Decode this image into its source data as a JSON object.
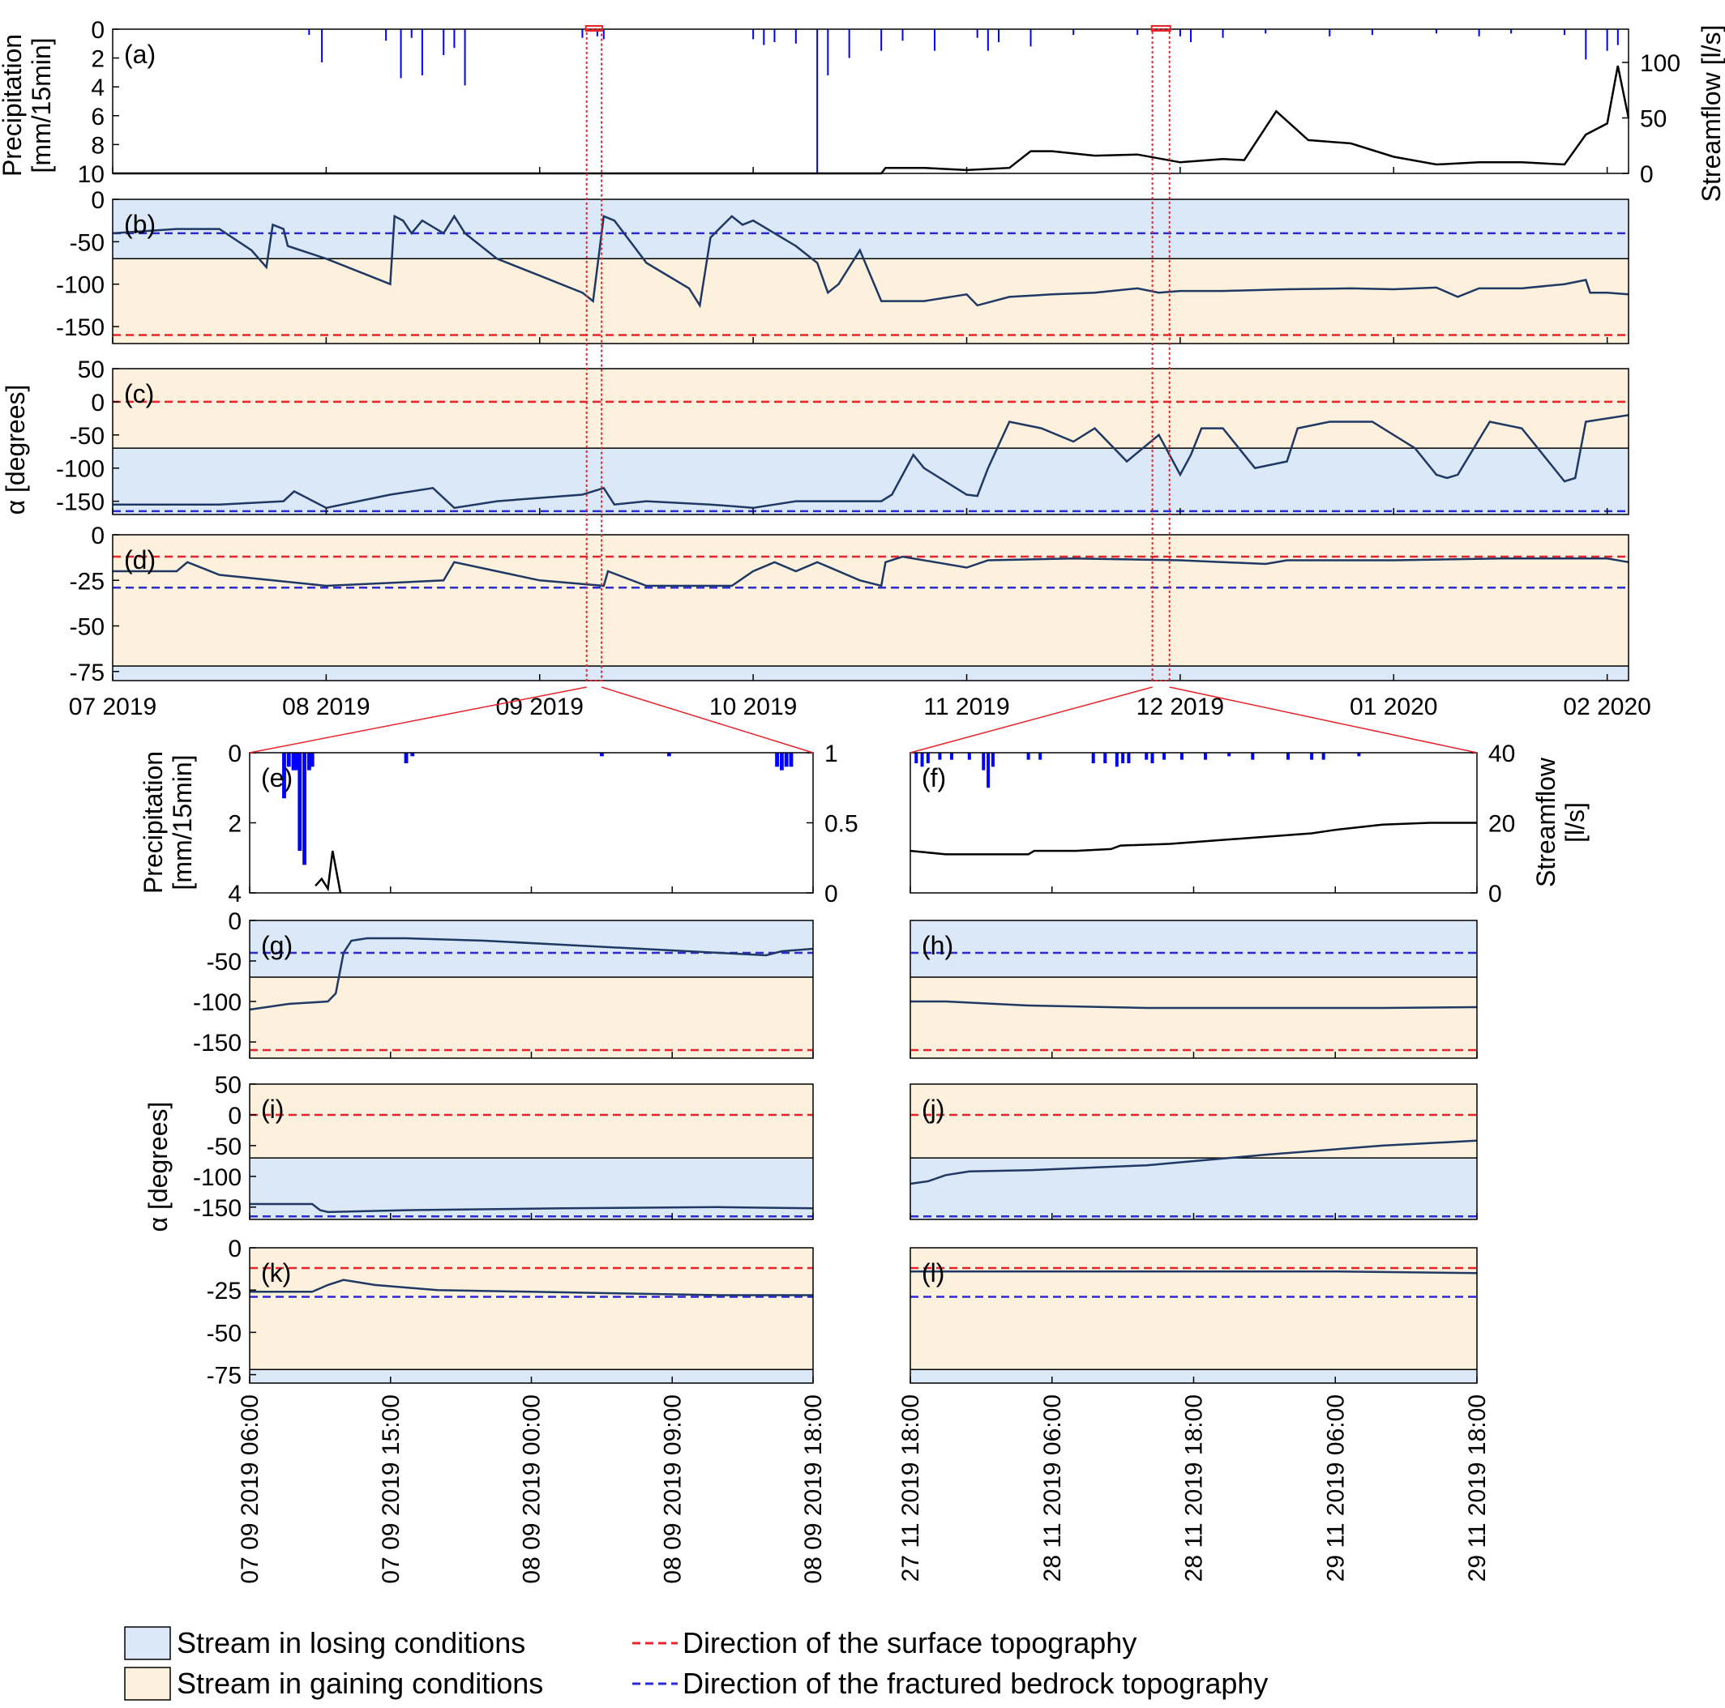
{
  "colors": {
    "losing": "#dae8f7",
    "gaining": "#fdf0dc",
    "precip": "#0000ff",
    "streamflow": "#000000",
    "alpha_line": "#1f3864",
    "surface_dir": "#e8242a",
    "bedrock_dir": "#2a2ad6",
    "zoom_box": "#e8242a"
  },
  "labels": {
    "precip_ylabel_top": [
      "Precipitation",
      "[mm/15min]"
    ],
    "streamflow_ylabel_top": "Streamflow [l/s]",
    "alpha_ylabel": "α [degrees]",
    "precip_ylabel_bottom": [
      "Precipitation",
      "[mm/15min]"
    ],
    "streamflow_ylabel_bottom": [
      "Streamflow",
      "[l/s]"
    ],
    "alpha_ylabel_bottom": "α [degrees]"
  },
  "legend": {
    "losing": "Stream in losing conditions",
    "gaining": "Stream in gaining conditions",
    "surface": "Direction of the surface topography",
    "bedrock": "Direction of the fractured bedrock topography"
  },
  "chart_data": [
    {
      "panel": "(a)",
      "type": "bar+line",
      "x_tick_labels": [
        "07 2019",
        "08 2019",
        "09 2019",
        "10 2019",
        "11 2019",
        "12 2019",
        "01 2020",
        "02 2020"
      ],
      "x_month_index": [
        0,
        1,
        2,
        3,
        4,
        5,
        6,
        7
      ],
      "xlim": [
        0,
        7.1
      ],
      "y_left": {
        "label": "Precipitation [mm/15min]",
        "lim": [
          10,
          0
        ],
        "ticks": [
          "0",
          "2",
          "4",
          "6",
          "8",
          "10"
        ],
        "tick_values": [
          0,
          2,
          4,
          6,
          8,
          10
        ]
      },
      "y_right": {
        "label": "Streamflow [l/s]",
        "lim": [
          0,
          130
        ],
        "ticks": [
          "0",
          "50",
          "100"
        ],
        "tick_values": [
          0,
          50,
          100
        ]
      },
      "precipitation": {
        "x": [
          0.92,
          0.98,
          1.28,
          1.35,
          1.4,
          1.45,
          1.55,
          1.6,
          1.65,
          2.2,
          2.27,
          2.3,
          3.0,
          3.05,
          3.1,
          3.2,
          3.3,
          3.35,
          3.45,
          3.6,
          3.7,
          3.85,
          4.05,
          4.1,
          4.15,
          4.3,
          4.5,
          4.8,
          5.0,
          5.05,
          5.2,
          5.4,
          5.7,
          5.9,
          6.2,
          6.4,
          6.55,
          6.8,
          6.9,
          7.0,
          7.05
        ],
        "values": [
          0.4,
          2.3,
          0.8,
          3.4,
          0.6,
          3.2,
          1.8,
          1.3,
          3.9,
          0.6,
          0.5,
          0.7,
          0.7,
          1.1,
          0.9,
          1.0,
          10.0,
          3.2,
          2.0,
          1.5,
          0.8,
          1.5,
          0.6,
          1.5,
          0.9,
          1.2,
          0.4,
          0.4,
          0.5,
          0.9,
          0.6,
          0.3,
          0.5,
          0.4,
          0.3,
          0.5,
          0.3,
          0.4,
          2.1,
          1.5,
          1.1
        ]
      },
      "streamflow": {
        "x": [
          0,
          1,
          2,
          3,
          3.6,
          3.62,
          3.8,
          4.0,
          4.2,
          4.3,
          4.4,
          4.6,
          4.8,
          5.0,
          5.2,
          5.3,
          5.45,
          5.6,
          5.8,
          6.0,
          6.2,
          6.4,
          6.6,
          6.8,
          6.9,
          7.0,
          7.05,
          7.1
        ],
        "values": [
          0,
          0,
          0,
          0,
          0,
          5,
          5,
          3,
          5,
          20,
          20,
          16,
          17,
          10,
          13,
          12,
          56,
          30,
          27,
          15,
          8,
          10,
          10,
          8,
          35,
          45,
          97,
          50
        ]
      }
    },
    {
      "panel": "(b)",
      "type": "line",
      "ylim": [
        -170,
        0
      ],
      "ticks": [
        "0",
        "-50",
        "-100",
        "-150"
      ],
      "tick_values": [
        0,
        -50,
        -100,
        -150
      ],
      "losing_band": [
        -70,
        0
      ],
      "gaining_band": [
        -170,
        -70
      ],
      "surface_dir": -160,
      "bedrock_dir": -40,
      "x": [
        0,
        0.3,
        0.5,
        0.65,
        0.72,
        0.75,
        0.8,
        0.82,
        1.0,
        1.2,
        1.3,
        1.32,
        1.36,
        1.4,
        1.45,
        1.55,
        1.6,
        1.65,
        1.8,
        2.0,
        2.2,
        2.25,
        2.3,
        2.35,
        2.5,
        2.7,
        2.75,
        2.8,
        2.9,
        2.95,
        3.0,
        3.1,
        3.2,
        3.3,
        3.35,
        3.4,
        3.5,
        3.6,
        3.8,
        4.0,
        4.05,
        4.2,
        4.4,
        4.6,
        4.8,
        4.9,
        5.0,
        5.2,
        5.5,
        5.8,
        6.0,
        6.2,
        6.3,
        6.4,
        6.6,
        6.8,
        6.9,
        6.92,
        7.0,
        7.1
      ],
      "values": [
        -40,
        -35,
        -35,
        -60,
        -80,
        -30,
        -35,
        -55,
        -70,
        -90,
        -100,
        -20,
        -25,
        -40,
        -25,
        -40,
        -20,
        -40,
        -70,
        -90,
        -110,
        -120,
        -20,
        -25,
        -75,
        -105,
        -125,
        -45,
        -20,
        -30,
        -25,
        -40,
        -55,
        -75,
        -110,
        -100,
        -60,
        -120,
        -120,
        -112,
        -125,
        -115,
        -112,
        -110,
        -105,
        -110,
        -108,
        -108,
        -106,
        -105,
        -106,
        -104,
        -115,
        -105,
        -105,
        -100,
        -95,
        -110,
        -110,
        -112
      ]
    },
    {
      "panel": "(c)",
      "type": "line",
      "ylim": [
        -170,
        50
      ],
      "ticks": [
        "50",
        "0",
        "-50",
        "-100",
        "-150"
      ],
      "tick_values": [
        50,
        0,
        -50,
        -100,
        -150
      ],
      "losing_band": [
        -170,
        -70
      ],
      "gaining_band": [
        -70,
        50
      ],
      "surface_dir": 0,
      "bedrock_dir": -165,
      "x": [
        0,
        0.5,
        0.8,
        0.85,
        1.0,
        1.3,
        1.5,
        1.6,
        1.8,
        2.0,
        2.2,
        2.3,
        2.35,
        2.5,
        2.8,
        3.0,
        3.2,
        3.4,
        3.6,
        3.65,
        3.75,
        3.8,
        4.0,
        4.05,
        4.1,
        4.2,
        4.35,
        4.5,
        4.6,
        4.75,
        4.9,
        5.0,
        5.05,
        5.1,
        5.2,
        5.35,
        5.5,
        5.55,
        5.7,
        5.9,
        6.1,
        6.2,
        6.25,
        6.3,
        6.45,
        6.6,
        6.8,
        6.85,
        6.9,
        7.0,
        7.1
      ],
      "values": [
        -155,
        -155,
        -150,
        -135,
        -160,
        -140,
        -130,
        -160,
        -150,
        -145,
        -140,
        -130,
        -155,
        -150,
        -155,
        -160,
        -150,
        -150,
        -150,
        -140,
        -80,
        -100,
        -140,
        -142,
        -100,
        -30,
        -40,
        -60,
        -40,
        -90,
        -50,
        -110,
        -80,
        -40,
        -40,
        -100,
        -90,
        -40,
        -30,
        -30,
        -70,
        -110,
        -115,
        -110,
        -30,
        -40,
        -120,
        -115,
        -30,
        -25,
        -20
      ]
    },
    {
      "panel": "(d)",
      "type": "line",
      "ylim": [
        -80,
        0
      ],
      "ticks": [
        "0",
        "-25",
        "-50",
        "-75"
      ],
      "tick_values": [
        0,
        -25,
        -50,
        -75
      ],
      "losing_band": [
        -80,
        -72
      ],
      "gaining_band": [
        -72,
        0
      ],
      "surface_dir": -12,
      "bedrock_dir": -29,
      "x": [
        0,
        0.3,
        0.35,
        0.5,
        1.0,
        1.55,
        1.6,
        2.0,
        2.3,
        2.32,
        2.5,
        2.9,
        3.0,
        3.1,
        3.2,
        3.3,
        3.5,
        3.6,
        3.62,
        3.7,
        4.0,
        4.1,
        4.5,
        5.0,
        5.4,
        5.5,
        6.0,
        6.5,
        7.0,
        7.1
      ],
      "values": [
        -20,
        -20,
        -15,
        -22,
        -28,
        -25,
        -15,
        -25,
        -28,
        -20,
        -28,
        -28,
        -20,
        -15,
        -20,
        -15,
        -25,
        -28,
        -15,
        -12,
        -18,
        -14,
        -13,
        -14,
        -16,
        -14,
        -14,
        -13,
        -13,
        -15
      ]
    },
    {
      "panel": "(e)",
      "type": "bar+line",
      "x_tick_labels": [
        "07 09 2019 06:00",
        "07 09 2019 15:00",
        "08 09 2019 00:00",
        "08 09 2019 09:00",
        "08 09 2019 18:00"
      ],
      "x_hours_since_07_09_2019_06_00": [
        0,
        9,
        18,
        27,
        36
      ],
      "xlim": [
        0,
        36
      ],
      "y_left": {
        "label": "Precipitation [mm/15min]",
        "lim": [
          4,
          0
        ],
        "ticks": [
          "0",
          "2",
          "4"
        ],
        "tick_values": [
          0,
          2,
          4
        ]
      },
      "y_right": {
        "label": "",
        "lim": [
          0,
          1
        ],
        "ticks": [
          "0",
          "0.5",
          "1"
        ],
        "tick_values": [
          0,
          0.5,
          1
        ]
      },
      "precipitation": {
        "x": [
          2.2,
          2.5,
          2.8,
          3.0,
          3.2,
          3.5,
          3.8,
          4.0,
          10.0,
          10.4,
          22.5,
          26.8,
          33.7,
          34.0,
          34.3,
          34.6
        ],
        "values": [
          1.3,
          0.4,
          0.5,
          0.5,
          2.8,
          3.2,
          0.5,
          0.4,
          0.3,
          0.1,
          0.1,
          0.1,
          0.4,
          0.5,
          0.4,
          0.4
        ]
      },
      "streamflow": {
        "x": [
          4.2,
          4.6,
          5.0,
          5.3,
          5.8
        ],
        "values": [
          0.05,
          0.1,
          0.03,
          0.3,
          0.0
        ]
      }
    },
    {
      "panel": "(f)",
      "type": "bar+line",
      "x_tick_labels": [
        "27 11 2019 18:00",
        "28 11 2019 06:00",
        "28 11 2019 18:00",
        "29 11 2019 06:00",
        "29 11 2019 18:00"
      ],
      "x_hours_since_27_11_2019_18_00": [
        0,
        12,
        24,
        36,
        48
      ],
      "xlim": [
        0,
        48
      ],
      "y_left": {
        "label": "",
        "lim": [
          4,
          0
        ],
        "ticks": [],
        "tick_values": []
      },
      "y_right": {
        "label": "Streamflow [l/s]",
        "lim": [
          0,
          40
        ],
        "ticks": [
          "0",
          "20",
          "40"
        ],
        "tick_values": [
          0,
          20,
          40
        ]
      },
      "precipitation": {
        "x": [
          0.5,
          1.0,
          1.5,
          2.5,
          3.5,
          5.0,
          6.2,
          6.6,
          7.0,
          10.0,
          11.0,
          15.5,
          16.5,
          17.5,
          18.0,
          18.5,
          20.0,
          20.5,
          21.5,
          23.0,
          25.0,
          27.0,
          29.0,
          32.0,
          34.0,
          35.0,
          38.0
        ],
        "values": [
          0.3,
          0.4,
          0.3,
          0.2,
          0.2,
          0.2,
          0.5,
          1.0,
          0.4,
          0.2,
          0.2,
          0.3,
          0.3,
          0.4,
          0.3,
          0.3,
          0.2,
          0.3,
          0.2,
          0.2,
          0.2,
          0.1,
          0.2,
          0.2,
          0.2,
          0.2,
          0.1
        ]
      },
      "streamflow": {
        "x": [
          0,
          3,
          6,
          10,
          10.5,
          14,
          17,
          17.8,
          22,
          28,
          34,
          36,
          40,
          44,
          48
        ],
        "values": [
          12,
          11,
          11,
          11,
          12,
          12,
          12.5,
          13.5,
          14,
          15.5,
          17,
          18,
          19.5,
          20,
          20
        ]
      }
    },
    {
      "panel": "(g)",
      "type": "line",
      "ylim": [
        -170,
        0
      ],
      "ticks": [
        "0",
        "-50",
        "-100",
        "-150"
      ],
      "tick_values": [
        0,
        -50,
        -100,
        -150
      ],
      "losing_band": [
        -70,
        0
      ],
      "gaining_band": [
        -170,
        -70
      ],
      "surface_dir": -160,
      "bedrock_dir": -40,
      "x": [
        0,
        2.5,
        5,
        5.5,
        6.0,
        6.5,
        7.5,
        10,
        15,
        20,
        25,
        30,
        33,
        34,
        36
      ],
      "values": [
        -110,
        -103,
        -100,
        -90,
        -40,
        -25,
        -22,
        -22,
        -25,
        -30,
        -35,
        -40,
        -43,
        -38,
        -35
      ]
    },
    {
      "panel": "(h)",
      "type": "line",
      "ylim": [
        -170,
        0
      ],
      "ticks": [],
      "tick_values": [],
      "losing_band": [
        -70,
        0
      ],
      "gaining_band": [
        -170,
        -70
      ],
      "surface_dir": -160,
      "bedrock_dir": -40,
      "x": [
        0,
        3,
        10,
        20,
        30,
        40,
        48
      ],
      "values": [
        -100,
        -100,
        -105,
        -108,
        -108,
        -108,
        -107
      ]
    },
    {
      "panel": "(i)",
      "type": "line",
      "ylim": [
        -170,
        50
      ],
      "ticks": [
        "50",
        "0",
        "-50",
        "-100",
        "-150"
      ],
      "tick_values": [
        50,
        0,
        -50,
        -100,
        -150
      ],
      "losing_band": [
        -170,
        -70
      ],
      "gaining_band": [
        -70,
        50
      ],
      "surface_dir": 0,
      "bedrock_dir": -165,
      "x": [
        0,
        4,
        4.5,
        5,
        10,
        20,
        30,
        36
      ],
      "values": [
        -145,
        -145,
        -155,
        -158,
        -155,
        -152,
        -150,
        -152
      ]
    },
    {
      "panel": "(j)",
      "type": "line",
      "ylim": [
        -170,
        50
      ],
      "ticks": [],
      "tick_values": [],
      "losing_band": [
        -170,
        -70
      ],
      "gaining_band": [
        -70,
        50
      ],
      "surface_dir": 0,
      "bedrock_dir": -165,
      "x": [
        0,
        1.5,
        3,
        5,
        10,
        20,
        30,
        40,
        48
      ],
      "values": [
        -112,
        -108,
        -98,
        -92,
        -90,
        -82,
        -65,
        -50,
        -42
      ]
    },
    {
      "panel": "(k)",
      "type": "line",
      "ylim": [
        -80,
        0
      ],
      "ticks": [
        "0",
        "-25",
        "-50",
        "-75"
      ],
      "tick_values": [
        0,
        -25,
        -50,
        -75
      ],
      "losing_band": [
        -80,
        -72
      ],
      "gaining_band": [
        -72,
        0
      ],
      "surface_dir": -12,
      "bedrock_dir": -29,
      "x": [
        0,
        4,
        5,
        6,
        8,
        12,
        18,
        24,
        30,
        36
      ],
      "values": [
        -26,
        -26,
        -22,
        -19,
        -22,
        -25,
        -26,
        -27,
        -28,
        -28
      ]
    },
    {
      "panel": "(l)",
      "type": "line",
      "ylim": [
        -80,
        0
      ],
      "ticks": [],
      "tick_values": [],
      "losing_band": [
        -80,
        -72
      ],
      "gaining_band": [
        -72,
        0
      ],
      "surface_dir": -12,
      "bedrock_dir": -29,
      "x": [
        0,
        12,
        24,
        36,
        48
      ],
      "values": [
        -14,
        -14,
        -14,
        -14,
        -15
      ]
    }
  ]
}
